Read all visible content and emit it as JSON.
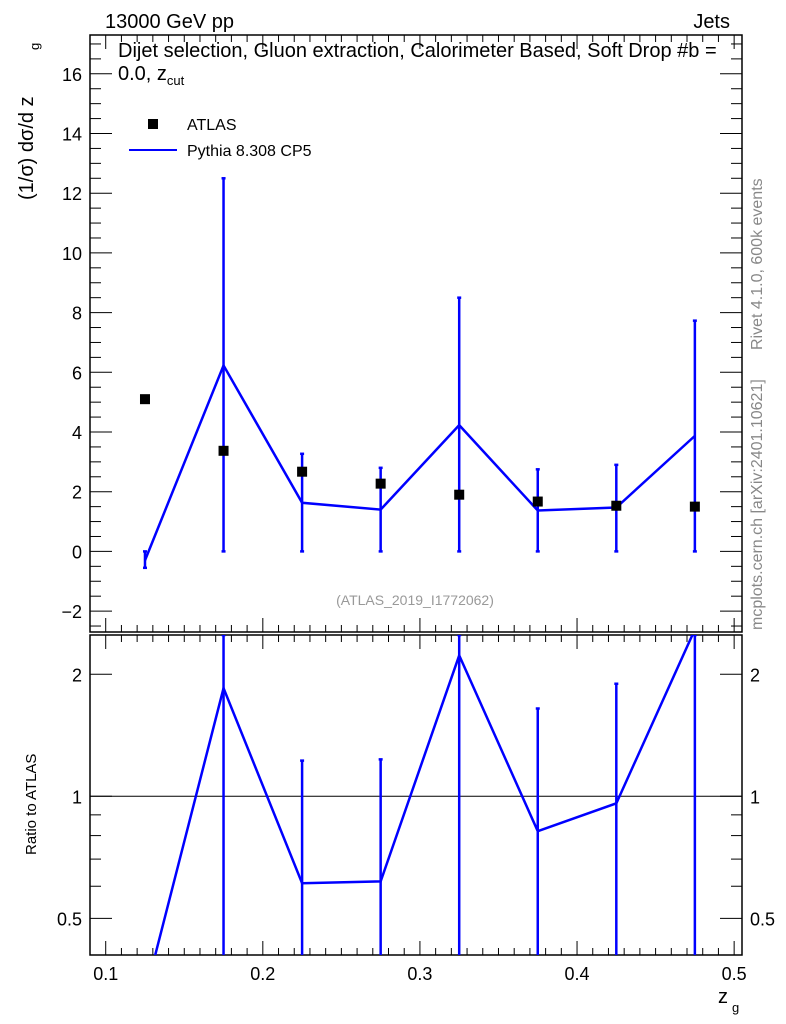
{
  "chart_data": {
    "type": "line",
    "top_left_label": "13000 GeV pp",
    "top_right_label": "Jets",
    "title": "Dijet selection, Gluon extraction, Calorimeter Based, Soft Drop #b = 0.0, z",
    "title_sub": "cut",
    "ylabel": "(1/σ) dσ/d z",
    "ylabel_sub": "g",
    "xlabel": "z",
    "xlabel_sub": "g",
    "ratio_ylabel": "Ratio to ATLAS",
    "side_label_top": "Rivet 4.1.0,  600k events",
    "side_label_bottom": "mcplots.cern.ch [arXiv:2401.10621]",
    "analysis_label": "(ATLAS_2019_I1772062)",
    "xlim": [
      0.09,
      0.505
    ],
    "ylim": [
      -2.7,
      17.3
    ],
    "ratio_ylim": [
      0.406,
      2.5
    ],
    "x_ticks": [
      "0.1",
      "0.2",
      "0.3",
      "0.4",
      "0.5"
    ],
    "y_ticks": [
      "−2",
      "0",
      "2",
      "4",
      "6",
      "8",
      "10",
      "12",
      "14",
      "16"
    ],
    "ratio_ticks": [
      "0.5",
      "1",
      "2"
    ],
    "x": [
      0.125,
      0.175,
      0.225,
      0.275,
      0.325,
      0.375,
      0.425,
      0.475
    ],
    "series": [
      {
        "name": "ATLAS",
        "style": "markers",
        "color": "#000000",
        "values": [
          5.1,
          3.37,
          2.67,
          2.27,
          1.9,
          1.67,
          1.53,
          1.5
        ]
      },
      {
        "name": "Pythia 8.308 CP5",
        "style": "line",
        "color": "#0000ff",
        "values": [
          -0.3,
          6.23,
          1.63,
          1.4,
          4.23,
          1.37,
          1.47,
          3.87
        ],
        "err_low": [
          -0.55,
          0,
          0,
          0,
          0,
          0,
          0,
          0
        ],
        "err_high": [
          0,
          12.5,
          3.27,
          2.8,
          8.5,
          2.75,
          2.9,
          7.73
        ]
      }
    ]
  }
}
